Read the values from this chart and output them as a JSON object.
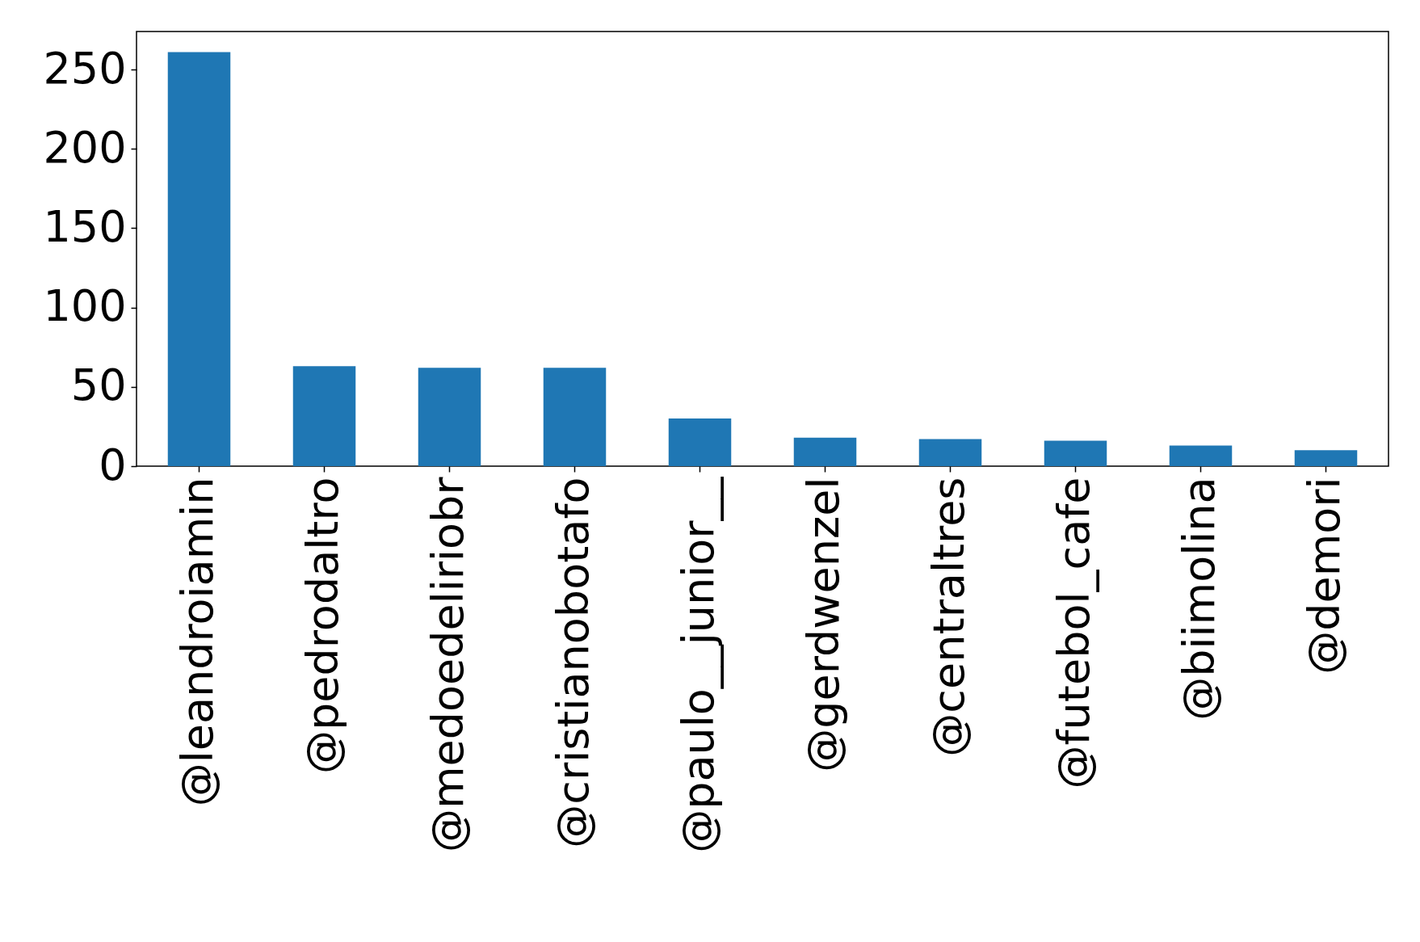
{
  "chart_data": {
    "type": "bar",
    "categories": [
      "@leandroiamin",
      "@pedrodaltro",
      "@medoedeliriobr",
      "@cristianobotafo",
      "@paulo__junior__",
      "@gerdwenzel",
      "@centraltres",
      "@futebol_cafe",
      "@biimolina",
      "@demori"
    ],
    "values": [
      261,
      63,
      62,
      62,
      30,
      18,
      17,
      16,
      13,
      10
    ],
    "color": "#1f77b4",
    "ylim": [
      0,
      274
    ],
    "yticks": [
      0,
      50,
      100,
      150,
      200,
      250
    ],
    "grid": false
  }
}
